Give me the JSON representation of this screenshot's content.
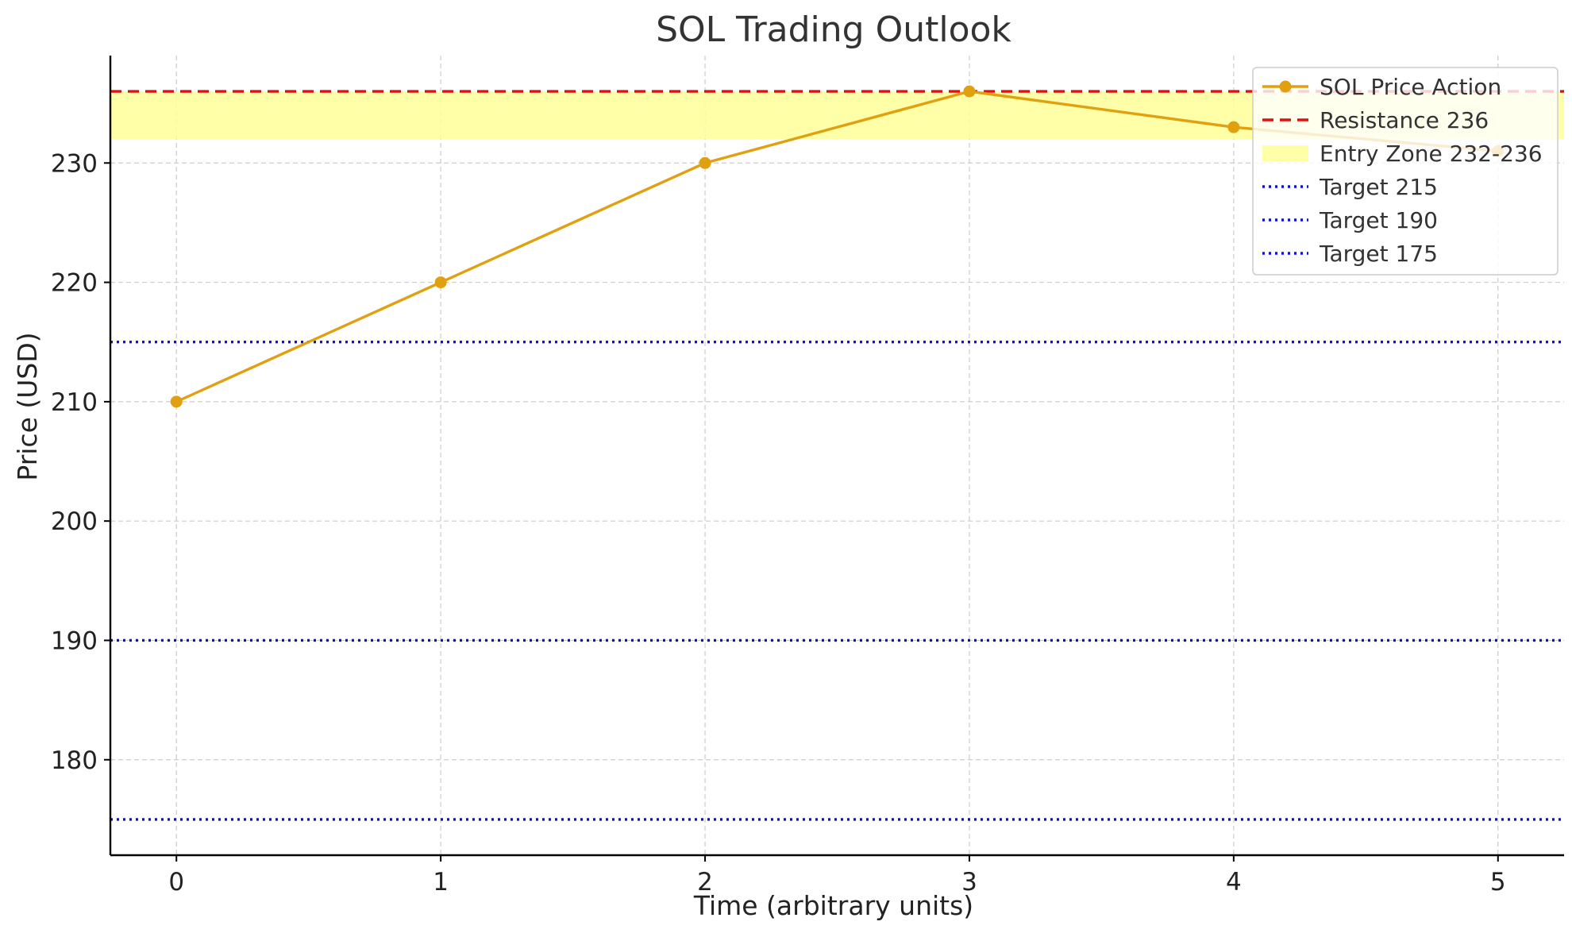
{
  "chart_data": {
    "type": "line",
    "title": "SOL Trading Outlook",
    "xlabel": "Time (arbitrary units)",
    "ylabel": "Price (USD)",
    "x": [
      0,
      1,
      2,
      3,
      4,
      5
    ],
    "xlim": [
      -0.25,
      5.25
    ],
    "ylim": [
      172,
      239
    ],
    "x_ticks": [
      0,
      1,
      2,
      3,
      4,
      5
    ],
    "y_ticks": [
      180,
      190,
      200,
      210,
      220,
      230
    ],
    "grid": true,
    "legend_position": "top-right",
    "series": [
      {
        "name": "SOL Price Action",
        "values": [
          210,
          220,
          230,
          236,
          233,
          231
        ],
        "color": "#E0A010",
        "style": "solid-line-with-markers"
      }
    ],
    "reference_lines": [
      {
        "name": "Resistance 236",
        "y": 236,
        "color": "#E01010",
        "style": "dashed"
      },
      {
        "name": "Target 215",
        "y": 215,
        "color": "#1010CC",
        "style": "dotted"
      },
      {
        "name": "Target 190",
        "y": 190,
        "color": "#1010CC",
        "style": "dotted"
      },
      {
        "name": "Target 175",
        "y": 175,
        "color": "#1010CC",
        "style": "dotted"
      }
    ],
    "bands": [
      {
        "name": "Entry Zone 232-236",
        "y_min": 232,
        "y_max": 236,
        "color": "#FFFF99"
      }
    ],
    "legend": [
      "SOL Price Action",
      "Resistance 236",
      "Entry Zone 232-236",
      "Target 215",
      "Target 190",
      "Target 175"
    ]
  }
}
